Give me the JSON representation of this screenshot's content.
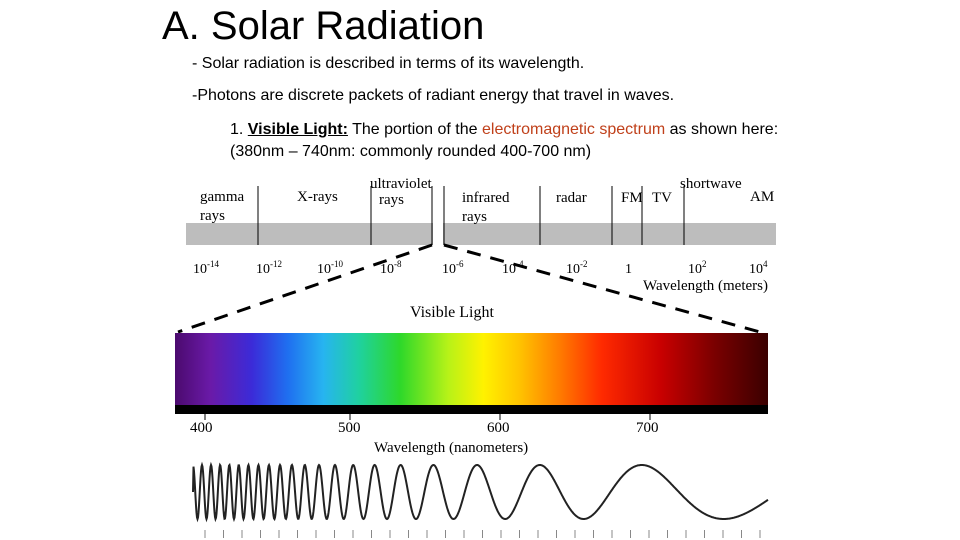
{
  "title": "A.  Solar Radiation",
  "bullets": [
    "- Solar radiation is described in terms of its wavelength.",
    "-Photons are discrete packets of radiant energy that travel in waves."
  ],
  "subpoint": {
    "number": "1.",
    "term": "Visible Light:",
    "text_before": "The portion of the",
    "highlight": "electromagnetic spectrum",
    "text_after": "as shown here: (380nm – 740nm: commonly rounded 400-700 nm)",
    "highlight_color": "#c0401a"
  },
  "spectrum": {
    "bands": [
      "gamma rays",
      "X-rays",
      "ultraviolet rays",
      "infrared rays",
      "radar",
      "FM",
      "TV",
      "shortwave",
      "AM"
    ],
    "wavelengths": [
      {
        "base": "10",
        "exp": "-14"
      },
      {
        "base": "10",
        "exp": "-12"
      },
      {
        "base": "10",
        "exp": "-10"
      },
      {
        "base": "10",
        "exp": "-8"
      },
      {
        "base": "10",
        "exp": "-6"
      },
      {
        "base": "10",
        "exp": "-4"
      },
      {
        "base": "10",
        "exp": "-2"
      },
      {
        "base": "1",
        "exp": ""
      },
      {
        "base": "10",
        "exp": "2"
      },
      {
        "base": "10",
        "exp": "4"
      }
    ],
    "axis_label": "Wavelength (meters)"
  },
  "visible": {
    "label": "Visible Light",
    "ticks": [
      "400",
      "500",
      "600",
      "700"
    ],
    "axis_label": "Wavelength (nanometers)"
  }
}
